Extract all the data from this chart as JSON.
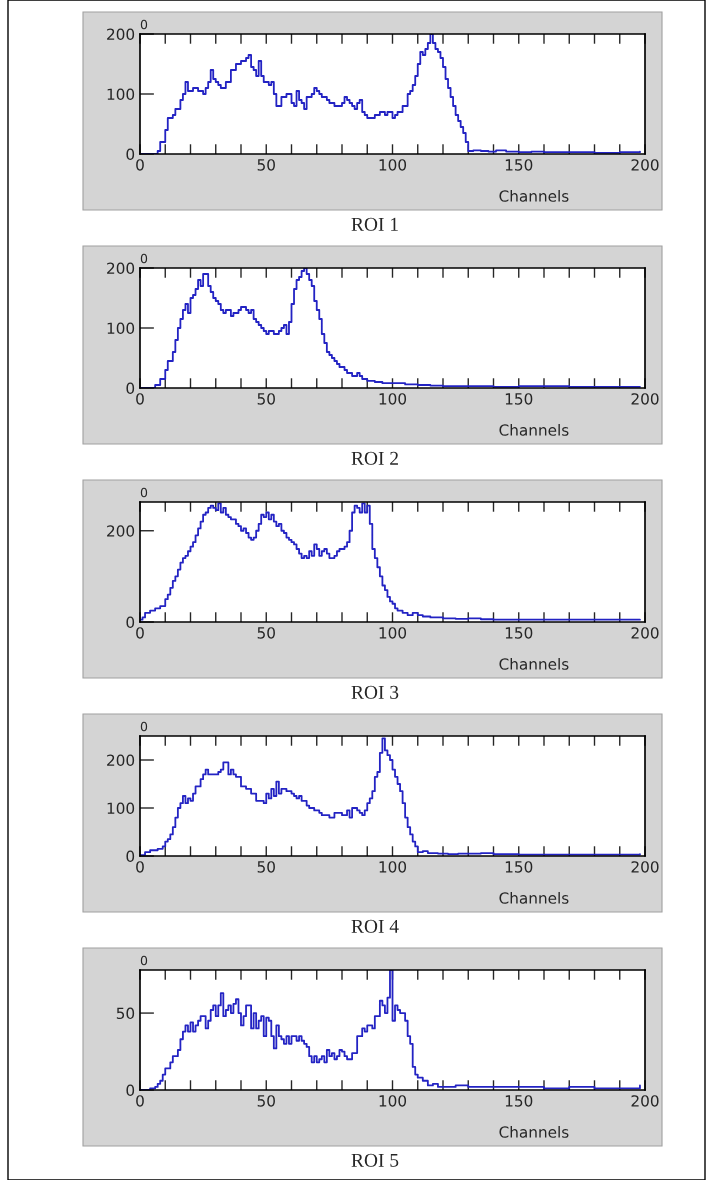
{
  "chart_data": [
    {
      "type": "step",
      "title": "ROI 1",
      "xlabel": "Channels",
      "color": "#2323c3",
      "annotations": [
        "0"
      ],
      "xlim": [
        0,
        200
      ],
      "xticks": [
        0,
        50,
        100,
        150,
        200
      ],
      "ylim": [
        0,
        200
      ],
      "yticks": [
        0,
        100,
        200
      ],
      "x": [
        0,
        7,
        8,
        10,
        11,
        13,
        14,
        16,
        17,
        18,
        19,
        21,
        23,
        25,
        26,
        27,
        28,
        29,
        30,
        31,
        32,
        34,
        36,
        38,
        40,
        42,
        43,
        44,
        45,
        46,
        47,
        48,
        49,
        51,
        52,
        53,
        54,
        56,
        58,
        60,
        61,
        62,
        63,
        64,
        65,
        66,
        68,
        69,
        70,
        71,
        72,
        74,
        75,
        77,
        79,
        80,
        81,
        82,
        83,
        84,
        85,
        86,
        87,
        88,
        89,
        90,
        91,
        93,
        95,
        97,
        98,
        100,
        101,
        102,
        104,
        106,
        107,
        108,
        109,
        110,
        111,
        112,
        113,
        114,
        115,
        116,
        117,
        118,
        119,
        120,
        121,
        122,
        123,
        124,
        125,
        126,
        127,
        128,
        129,
        130,
        132,
        135,
        138,
        141,
        145,
        150,
        155,
        160,
        170,
        180,
        190,
        198
      ],
      "values": [
        0,
        5,
        20,
        40,
        60,
        65,
        75,
        90,
        100,
        120,
        105,
        110,
        105,
        100,
        110,
        120,
        140,
        125,
        120,
        115,
        110,
        120,
        140,
        150,
        155,
        160,
        165,
        145,
        140,
        130,
        155,
        130,
        120,
        115,
        120,
        100,
        80,
        95,
        100,
        85,
        80,
        105,
        90,
        85,
        75,
        95,
        100,
        110,
        105,
        100,
        95,
        90,
        85,
        80,
        80,
        85,
        95,
        90,
        85,
        80,
        75,
        85,
        90,
        70,
        65,
        60,
        60,
        65,
        70,
        65,
        70,
        60,
        65,
        70,
        80,
        100,
        105,
        115,
        130,
        150,
        170,
        165,
        175,
        185,
        200,
        185,
        175,
        170,
        160,
        145,
        125,
        110,
        95,
        80,
        65,
        55,
        45,
        35,
        20,
        5,
        6,
        5,
        4,
        6,
        4,
        3,
        4,
        3,
        3,
        2,
        3,
        4
      ]
    },
    {
      "type": "step",
      "title": "ROI 2",
      "xlabel": "Channels",
      "color": "#2323c3",
      "annotations": [
        "0"
      ],
      "xlim": [
        0,
        200
      ],
      "xticks": [
        0,
        50,
        100,
        150,
        200
      ],
      "ylim": [
        0,
        200
      ],
      "yticks": [
        0,
        100,
        200
      ],
      "x": [
        0,
        6,
        8,
        10,
        11,
        13,
        14,
        15,
        16,
        17,
        18,
        19,
        20,
        21,
        22,
        23,
        24,
        25,
        26,
        27,
        28,
        29,
        30,
        31,
        32,
        33,
        34,
        36,
        37,
        39,
        40,
        42,
        43,
        44,
        45,
        46,
        47,
        48,
        49,
        50,
        51,
        53,
        55,
        56,
        57,
        58,
        59,
        60,
        61,
        62,
        63,
        64,
        65,
        66,
        67,
        68,
        69,
        70,
        71,
        72,
        73,
        74,
        75,
        76,
        77,
        78,
        79,
        80,
        81,
        82,
        84,
        86,
        87,
        88,
        90,
        93,
        96,
        100,
        105,
        110,
        115,
        120,
        130,
        140,
        150,
        160,
        170,
        180,
        190,
        198
      ],
      "values": [
        0,
        5,
        15,
        30,
        45,
        60,
        80,
        100,
        115,
        130,
        140,
        125,
        150,
        155,
        165,
        180,
        170,
        190,
        190,
        170,
        160,
        150,
        145,
        140,
        130,
        125,
        130,
        120,
        125,
        130,
        135,
        130,
        125,
        130,
        115,
        110,
        105,
        100,
        95,
        90,
        95,
        90,
        95,
        100,
        105,
        90,
        110,
        140,
        165,
        180,
        185,
        195,
        200,
        190,
        180,
        170,
        145,
        130,
        115,
        90,
        75,
        60,
        55,
        50,
        45,
        40,
        35,
        35,
        30,
        25,
        20,
        25,
        20,
        15,
        12,
        10,
        8,
        8,
        6,
        5,
        4,
        3,
        3,
        2,
        3,
        3,
        2,
        2,
        2,
        2
      ]
    },
    {
      "type": "step",
      "title": "ROI 3",
      "xlabel": "Channels",
      "color": "#2323c3",
      "annotations": [
        "0"
      ],
      "xlim": [
        0,
        200
      ],
      "xticks": [
        0,
        50,
        100,
        150,
        200
      ],
      "ylim": [
        0,
        263
      ],
      "yticks": [
        0,
        200
      ],
      "x": [
        0,
        1,
        2,
        4,
        6,
        8,
        10,
        11,
        12,
        13,
        14,
        15,
        16,
        17,
        18,
        19,
        20,
        21,
        22,
        23,
        24,
        25,
        26,
        27,
        28,
        29,
        30,
        31,
        32,
        33,
        34,
        35,
        36,
        37,
        38,
        39,
        40,
        41,
        42,
        43,
        44,
        45,
        46,
        47,
        48,
        49,
        50,
        51,
        52,
        53,
        54,
        55,
        56,
        57,
        58,
        59,
        60,
        61,
        62,
        63,
        64,
        65,
        66,
        67,
        68,
        69,
        70,
        71,
        72,
        73,
        74,
        75,
        76,
        77,
        78,
        79,
        80,
        81,
        82,
        83,
        84,
        85,
        86,
        87,
        88,
        89,
        90,
        91,
        92,
        93,
        94,
        95,
        96,
        97,
        98,
        99,
        100,
        101,
        102,
        104,
        106,
        108,
        110,
        112,
        115,
        120,
        125,
        130,
        135,
        140,
        150,
        160,
        170,
        180,
        190,
        198
      ],
      "values": [
        5,
        10,
        20,
        25,
        30,
        35,
        50,
        60,
        75,
        90,
        100,
        115,
        130,
        140,
        145,
        155,
        165,
        175,
        190,
        205,
        220,
        235,
        240,
        250,
        255,
        250,
        245,
        260,
        240,
        250,
        235,
        230,
        225,
        225,
        215,
        210,
        200,
        205,
        195,
        185,
        180,
        185,
        200,
        215,
        235,
        230,
        240,
        225,
        235,
        220,
        210,
        215,
        200,
        195,
        185,
        180,
        175,
        170,
        160,
        150,
        140,
        145,
        140,
        155,
        145,
        170,
        160,
        145,
        155,
        160,
        150,
        140,
        140,
        145,
        155,
        160,
        160,
        165,
        175,
        200,
        240,
        255,
        250,
        240,
        260,
        240,
        255,
        215,
        160,
        140,
        120,
        100,
        80,
        70,
        55,
        45,
        40,
        30,
        25,
        20,
        15,
        20,
        15,
        12,
        10,
        8,
        7,
        8,
        6,
        5,
        5,
        5,
        5,
        5,
        5,
        5
      ]
    },
    {
      "type": "step",
      "title": "ROI 4",
      "xlabel": "Channels",
      "color": "#2323c3",
      "annotations": [
        "0"
      ],
      "xlim": [
        0,
        200
      ],
      "xticks": [
        0,
        50,
        100,
        150,
        200
      ],
      "ylim": [
        0,
        250
      ],
      "yticks": [
        0,
        100,
        200
      ],
      "x": [
        0,
        2,
        4,
        7,
        9,
        10,
        11,
        12,
        13,
        14,
        15,
        16,
        17,
        18,
        19,
        20,
        21,
        22,
        23,
        24,
        25,
        26,
        27,
        29,
        31,
        32,
        33,
        34,
        35,
        36,
        37,
        38,
        40,
        42,
        44,
        46,
        48,
        49,
        50,
        51,
        52,
        53,
        54,
        55,
        56,
        58,
        60,
        61,
        62,
        63,
        64,
        65,
        66,
        67,
        69,
        71,
        72,
        73,
        75,
        77,
        79,
        80,
        82,
        83,
        84,
        86,
        87,
        88,
        89,
        90,
        91,
        92,
        93,
        94,
        95,
        96,
        97,
        98,
        99,
        100,
        101,
        102,
        103,
        104,
        105,
        106,
        107,
        108,
        109,
        110,
        112,
        114,
        118,
        122,
        126,
        130,
        135,
        140,
        150,
        160,
        170,
        180,
        190,
        198
      ],
      "values": [
        2,
        8,
        12,
        15,
        20,
        30,
        35,
        45,
        60,
        80,
        100,
        110,
        125,
        110,
        120,
        115,
        130,
        145,
        145,
        160,
        170,
        180,
        170,
        170,
        175,
        180,
        195,
        195,
        170,
        180,
        170,
        165,
        145,
        140,
        130,
        115,
        115,
        110,
        130,
        120,
        140,
        125,
        155,
        130,
        140,
        135,
        130,
        125,
        120,
        125,
        115,
        115,
        105,
        100,
        95,
        90,
        85,
        85,
        80,
        90,
        90,
        85,
        95,
        80,
        100,
        95,
        90,
        85,
        95,
        110,
        120,
        135,
        165,
        175,
        215,
        245,
        220,
        210,
        200,
        180,
        165,
        150,
        135,
        110,
        80,
        60,
        45,
        30,
        20,
        8,
        10,
        6,
        5,
        4,
        5,
        5,
        6,
        4,
        3,
        3,
        3,
        3,
        3,
        4
      ]
    },
    {
      "type": "step",
      "title": "ROI 5",
      "xlabel": "Channels",
      "color": "#2323c3",
      "annotations": [
        "0"
      ],
      "xlim": [
        0,
        200
      ],
      "xticks": [
        0,
        50,
        100,
        150,
        200
      ],
      "ylim": [
        0,
        78
      ],
      "yticks": [
        0,
        50
      ],
      "x": [
        0,
        4,
        6,
        7,
        8,
        9,
        10,
        12,
        13,
        15,
        16,
        17,
        18,
        19,
        20,
        21,
        22,
        23,
        24,
        26,
        27,
        28,
        29,
        30,
        31,
        32,
        33,
        34,
        35,
        36,
        37,
        38,
        39,
        40,
        41,
        42,
        44,
        45,
        46,
        47,
        48,
        49,
        50,
        51,
        52,
        53,
        54,
        55,
        56,
        57,
        58,
        59,
        60,
        62,
        63,
        64,
        65,
        66,
        67,
        68,
        69,
        70,
        71,
        72,
        73,
        74,
        75,
        76,
        77,
        78,
        79,
        80,
        81,
        82,
        84,
        86,
        88,
        89,
        90,
        92,
        93,
        95,
        96,
        97,
        98,
        99,
        100,
        101,
        102,
        103,
        105,
        106,
        107,
        108,
        109,
        110,
        112,
        114,
        116,
        118,
        120,
        125,
        130,
        140,
        150,
        160,
        170,
        180,
        190,
        198
      ],
      "values": [
        0,
        1,
        2,
        4,
        6,
        10,
        14,
        18,
        22,
        26,
        33,
        38,
        42,
        38,
        44,
        38,
        42,
        45,
        48,
        40,
        45,
        52,
        55,
        48,
        55,
        63,
        48,
        52,
        55,
        50,
        56,
        59,
        50,
        42,
        48,
        55,
        40,
        50,
        40,
        45,
        48,
        35,
        47,
        45,
        35,
        27,
        42,
        35,
        33,
        30,
        35,
        30,
        35,
        32,
        35,
        32,
        30,
        28,
        22,
        18,
        22,
        18,
        20,
        22,
        18,
        26,
        22,
        24,
        20,
        22,
        26,
        25,
        22,
        20,
        24,
        35,
        40,
        38,
        42,
        40,
        48,
        58,
        55,
        50,
        60,
        78,
        45,
        55,
        52,
        50,
        45,
        35,
        30,
        15,
        10,
        8,
        6,
        3,
        4,
        2,
        2,
        3,
        2,
        2,
        2,
        1,
        2,
        1,
        1,
        3
      ]
    }
  ]
}
